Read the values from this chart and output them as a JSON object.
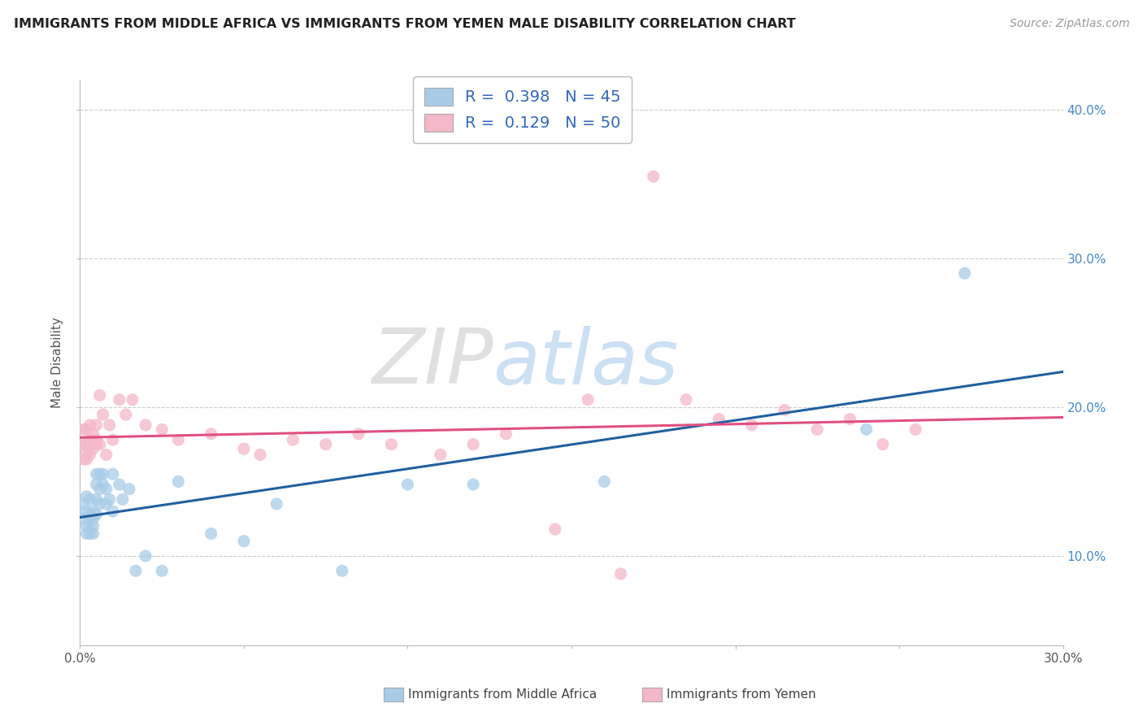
{
  "title": "IMMIGRANTS FROM MIDDLE AFRICA VS IMMIGRANTS FROM YEMEN MALE DISABILITY CORRELATION CHART",
  "source": "Source: ZipAtlas.com",
  "xlabel_blue": "Immigrants from Middle Africa",
  "xlabel_pink": "Immigrants from Yemen",
  "ylabel": "Male Disability",
  "xlim": [
    0.0,
    0.3
  ],
  "ylim": [
    0.04,
    0.42
  ],
  "yticks": [
    0.1,
    0.2,
    0.3,
    0.4
  ],
  "ytick_labels": [
    "10.0%",
    "20.0%",
    "30.0%",
    "40.0%"
  ],
  "xtick_positions": [
    0.0,
    0.05,
    0.1,
    0.15,
    0.2,
    0.25,
    0.3
  ],
  "blue_R": 0.398,
  "blue_N": 45,
  "pink_R": 0.129,
  "pink_N": 50,
  "blue_color": "#a8cce8",
  "pink_color": "#f4b8c8",
  "blue_line_color": "#2060a0",
  "pink_line_color": "#e05080",
  "watermark_zip": "ZIP",
  "watermark_atlas": "atlas",
  "blue_scatter_x": [
    0.001,
    0.001,
    0.002,
    0.002,
    0.002,
    0.002,
    0.003,
    0.003,
    0.003,
    0.003,
    0.003,
    0.004,
    0.004,
    0.004,
    0.004,
    0.005,
    0.005,
    0.005,
    0.005,
    0.006,
    0.006,
    0.006,
    0.007,
    0.007,
    0.008,
    0.008,
    0.009,
    0.01,
    0.01,
    0.012,
    0.013,
    0.015,
    0.017,
    0.02,
    0.025,
    0.03,
    0.04,
    0.05,
    0.06,
    0.08,
    0.1,
    0.12,
    0.16,
    0.24,
    0.27
  ],
  "blue_scatter_y": [
    0.135,
    0.125,
    0.13,
    0.14,
    0.12,
    0.115,
    0.128,
    0.118,
    0.138,
    0.125,
    0.115,
    0.13,
    0.12,
    0.125,
    0.115,
    0.155,
    0.148,
    0.138,
    0.128,
    0.155,
    0.145,
    0.135,
    0.155,
    0.148,
    0.145,
    0.135,
    0.138,
    0.155,
    0.13,
    0.148,
    0.138,
    0.145,
    0.09,
    0.1,
    0.09,
    0.15,
    0.115,
    0.11,
    0.135,
    0.09,
    0.148,
    0.148,
    0.15,
    0.185,
    0.29
  ],
  "pink_scatter_x": [
    0.001,
    0.001,
    0.001,
    0.002,
    0.002,
    0.002,
    0.002,
    0.003,
    0.003,
    0.003,
    0.003,
    0.004,
    0.004,
    0.005,
    0.005,
    0.005,
    0.006,
    0.006,
    0.007,
    0.008,
    0.009,
    0.01,
    0.012,
    0.014,
    0.016,
    0.02,
    0.025,
    0.03,
    0.04,
    0.05,
    0.055,
    0.065,
    0.075,
    0.085,
    0.095,
    0.11,
    0.12,
    0.13,
    0.145,
    0.155,
    0.165,
    0.175,
    0.185,
    0.195,
    0.205,
    0.215,
    0.225,
    0.235,
    0.245,
    0.255
  ],
  "pink_scatter_y": [
    0.175,
    0.165,
    0.185,
    0.17,
    0.185,
    0.175,
    0.165,
    0.178,
    0.168,
    0.188,
    0.175,
    0.182,
    0.172,
    0.178,
    0.188,
    0.175,
    0.208,
    0.175,
    0.195,
    0.168,
    0.188,
    0.178,
    0.205,
    0.195,
    0.205,
    0.188,
    0.185,
    0.178,
    0.182,
    0.172,
    0.168,
    0.178,
    0.175,
    0.182,
    0.175,
    0.168,
    0.175,
    0.182,
    0.118,
    0.205,
    0.088,
    0.355,
    0.205,
    0.192,
    0.188,
    0.198,
    0.185,
    0.192,
    0.175,
    0.185
  ]
}
